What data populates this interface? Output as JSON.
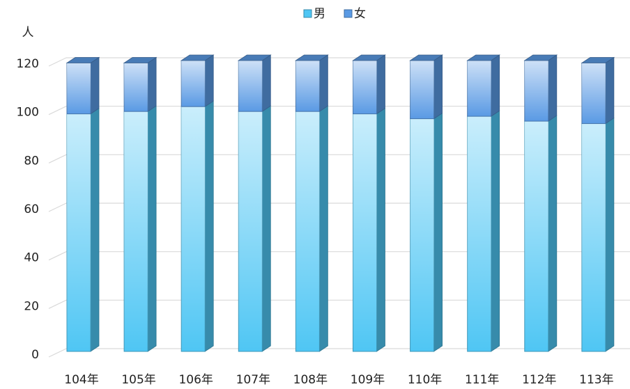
{
  "chart_data": {
    "type": "bar",
    "stacked": true,
    "y_label": "人",
    "categories": [
      "104年",
      "105年",
      "106年",
      "107年",
      "108年",
      "109年",
      "110年",
      "111年",
      "112年",
      "113年"
    ],
    "series": [
      {
        "name": "男",
        "color": "#4fc6f4",
        "values": [
          98,
          99,
          101,
          99,
          99,
          98,
          96,
          97,
          95,
          94
        ]
      },
      {
        "name": "女",
        "color": "#5a9ae4",
        "values": [
          21,
          20,
          19,
          21,
          21,
          22,
          24,
          23,
          25,
          25
        ]
      }
    ],
    "ylim": [
      0,
      120
    ],
    "yticks": [
      0,
      20,
      40,
      60,
      80,
      100,
      120
    ],
    "grid": true,
    "legend": "top"
  }
}
